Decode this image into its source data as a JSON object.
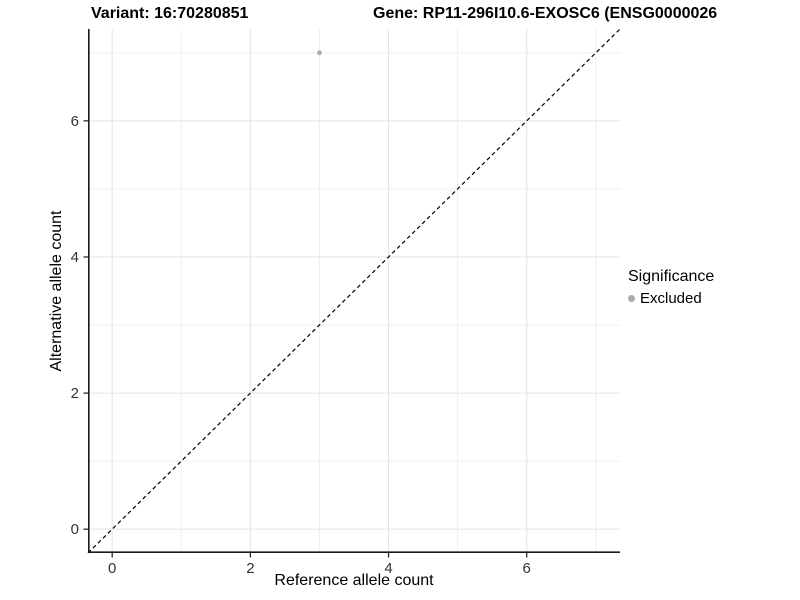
{
  "title": {
    "variant": "Variant: 16:70280851",
    "gene": "Gene: RP11-296I10.6-EXOSC6 (ENSG0000026"
  },
  "legend": {
    "title": "Significance",
    "items": [
      {
        "label": "Excluded",
        "color": "#aaaaaa"
      }
    ]
  },
  "chart_data": {
    "type": "scatter",
    "title": "Variant: 16:70280851   Gene: RP11-296I10.6-EXOSC6 (ENSG0000026",
    "xlabel": "Reference allele count",
    "ylabel": "Alternative allele count",
    "xlim": [
      -0.35,
      7.35
    ],
    "ylim": [
      -0.35,
      7.35
    ],
    "x_ticks": [
      0,
      2,
      4,
      6
    ],
    "y_ticks": [
      0,
      2,
      4,
      6
    ],
    "x_minor_gridlines": [
      1,
      3,
      5,
      7
    ],
    "y_minor_gridlines": [
      1,
      3,
      5,
      7
    ],
    "grid": "major and minor, light gray on white panel",
    "legend_position": "right",
    "reference_line": {
      "type": "identity y = x",
      "style": "dashed",
      "color": "#000000"
    },
    "series": [
      {
        "name": "Excluded",
        "color": "#aaaaaa",
        "points": [
          {
            "x": 3,
            "y": 7
          }
        ]
      }
    ]
  },
  "colors": {
    "background": "#ffffff",
    "grid_major": "#e3e3e3",
    "grid_minor": "#efefef",
    "axis_line": "#1a1a1a",
    "tick_label": "#333333",
    "point": "#aaaaaa"
  }
}
